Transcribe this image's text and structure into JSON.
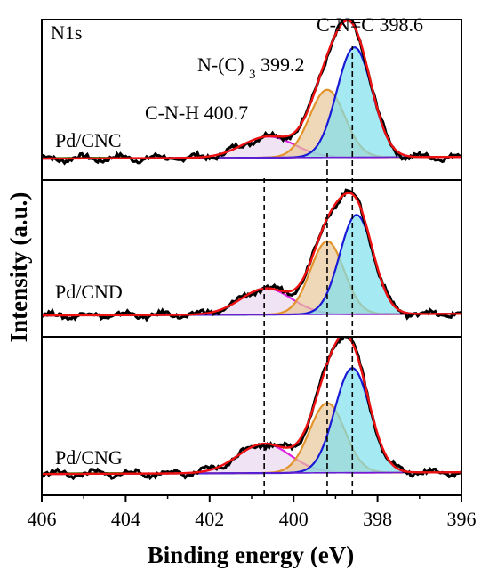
{
  "chart_data": {
    "type": "line",
    "title": "",
    "xlabel": "Binding energy (eV)",
    "ylabel": "Intensity (a.u.)",
    "xlim": [
      406,
      396
    ],
    "x_reversed": true,
    "x_ticks": [
      406,
      404,
      402,
      400,
      398,
      396
    ],
    "x_tick_labels": [
      "406",
      "404",
      "402",
      "400",
      "398",
      "396"
    ],
    "y_ticks_shown": false,
    "panel_corner_label": "N1s",
    "peak_labels": [
      "C-N=C 398.6",
      "N-(C)3 399.2",
      "C-N-H 400.7"
    ],
    "reference_lines_x": [
      400.7,
      399.2,
      398.6
    ],
    "panels": [
      {
        "name": "Pd/CNC",
        "components": [
          {
            "name": "C-N=C",
            "center": 398.55,
            "height": 0.78,
            "sigma": 0.42,
            "color": "#1a1ad6",
            "fill": "#7fe0ee"
          },
          {
            "name": "N-(C)3",
            "center": 399.2,
            "height": 0.48,
            "sigma": 0.42,
            "color": "#e3932b",
            "fill": "#e8c89a"
          },
          {
            "name": "C-N-H",
            "center": 400.6,
            "height": 0.15,
            "sigma": 0.62,
            "color": "#e020e0",
            "fill": "#e9d7ef"
          }
        ]
      },
      {
        "name": "Pd/CND",
        "components": [
          {
            "name": "C-N=C",
            "center": 398.5,
            "height": 0.72,
            "sigma": 0.4,
            "color": "#1a1ad6",
            "fill": "#7fe0ee"
          },
          {
            "name": "N-(C)3",
            "center": 399.2,
            "height": 0.53,
            "sigma": 0.4,
            "color": "#e3932b",
            "fill": "#e8c89a"
          },
          {
            "name": "C-N-H",
            "center": 400.65,
            "height": 0.19,
            "sigma": 0.6,
            "color": "#e020e0",
            "fill": "#e9d7ef"
          }
        ]
      },
      {
        "name": "Pd/CNG",
        "components": [
          {
            "name": "C-N=C",
            "center": 398.6,
            "height": 0.75,
            "sigma": 0.42,
            "color": "#1a1ad6",
            "fill": "#7fe0ee"
          },
          {
            "name": "N-(C)3",
            "center": 399.2,
            "height": 0.5,
            "sigma": 0.42,
            "color": "#e3932b",
            "fill": "#e8c89a"
          },
          {
            "name": "C-N-H",
            "center": 400.7,
            "height": 0.21,
            "sigma": 0.62,
            "color": "#e020e0",
            "fill": "#e9d7ef"
          }
        ]
      }
    ],
    "colors": {
      "experimental": "#000000",
      "envelope": "#ee1111",
      "background": "#6a1fd1",
      "background_left": "#22aa22"
    }
  }
}
